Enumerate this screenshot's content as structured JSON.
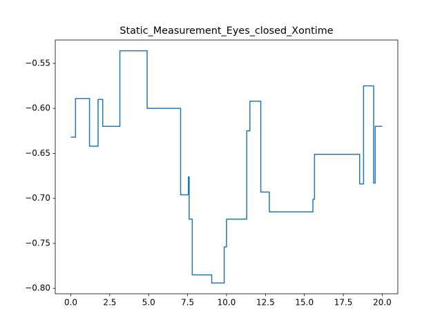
{
  "chart_data": {
    "type": "line",
    "title": "Static_Measurement_Eyes_closed_Xontime",
    "x": [
      0,
      0.3,
      0.3,
      1.2,
      1.2,
      1.75,
      1.75,
      2.05,
      2.05,
      3.15,
      3.15,
      4.9,
      4.9,
      7.05,
      7.05,
      7.55,
      7.55,
      7.6,
      7.6,
      7.8,
      7.8,
      9.05,
      9.05,
      9.85,
      9.85,
      10.0,
      10.0,
      11.3,
      11.3,
      11.5,
      11.5,
      12.2,
      12.2,
      12.75,
      12.75,
      15.55,
      15.55,
      15.65,
      15.65,
      18.55,
      18.55,
      18.8,
      18.8,
      19.45,
      19.45,
      19.55,
      19.55,
      20.0
    ],
    "series": [
      {
        "color": "#1f77b4",
        "values": [
          -0.632,
          -0.632,
          -0.589,
          -0.589,
          -0.642,
          -0.642,
          -0.59,
          -0.59,
          -0.62,
          -0.62,
          -0.536,
          -0.536,
          -0.6,
          -0.6,
          -0.696,
          -0.696,
          -0.676,
          -0.676,
          -0.723,
          -0.723,
          -0.785,
          -0.785,
          -0.794,
          -0.794,
          -0.754,
          -0.754,
          -0.723,
          -0.723,
          -0.625,
          -0.625,
          -0.592,
          -0.592,
          -0.693,
          -0.693,
          -0.715,
          -0.715,
          -0.701,
          -0.701,
          -0.651,
          -0.651,
          -0.684,
          -0.684,
          -0.575,
          -0.575,
          -0.683,
          -0.683,
          -0.62,
          -0.62
        ]
      }
    ],
    "xlim": [
      -1.0,
      21.0
    ],
    "xticks": [
      {
        "value": 0,
        "label": "0.0"
      },
      {
        "value": 2.5,
        "label": "2.5"
      },
      {
        "value": 5,
        "label": "5.0"
      },
      {
        "value": 7.5,
        "label": "7.5"
      },
      {
        "value": 10,
        "label": "10.0"
      },
      {
        "value": 12.5,
        "label": "12.5"
      },
      {
        "value": 15,
        "label": "15.0"
      },
      {
        "value": 17.5,
        "label": "17.5"
      },
      {
        "value": 20,
        "label": "20.0"
      }
    ],
    "ylim": [
      -0.806,
      -0.524
    ],
    "yticks": [
      {
        "value": -0.8,
        "label": "−0.80"
      },
      {
        "value": -0.75,
        "label": "−0.75"
      },
      {
        "value": -0.7,
        "label": "−0.70"
      },
      {
        "value": -0.65,
        "label": "−0.65"
      },
      {
        "value": -0.6,
        "label": "−0.60"
      },
      {
        "value": -0.55,
        "label": "−0.55"
      }
    ]
  }
}
